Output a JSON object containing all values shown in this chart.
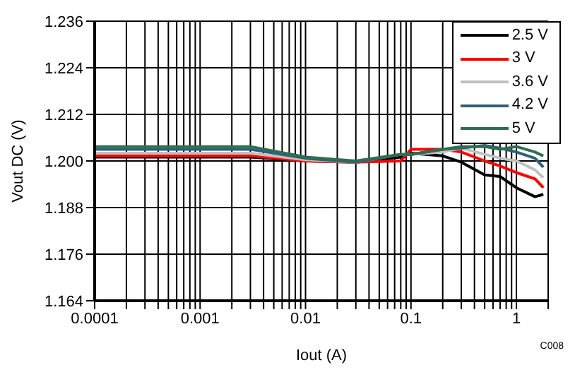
{
  "chart_data": {
    "type": "line",
    "xlabel": "Iout (A)",
    "ylabel": "Vout DC (V)",
    "log": "x",
    "grid": true,
    "legend": "top right",
    "marker": "none",
    "line_style": "solid",
    "x": [
      0.0001,
      0.001,
      0.003,
      0.01,
      0.03,
      0.08,
      0.1,
      0.2,
      0.3,
      0.5,
      0.7,
      1,
      1.5,
      1.8
    ],
    "series": [
      {
        "name": "2.5 V",
        "color": "#000000",
        "values": [
          1.201,
          1.201,
          1.201,
          1.2,
          1.1997,
          1.201,
          1.202,
          1.2013,
          1.1997,
          1.1964,
          1.196,
          1.1931,
          1.1908,
          1.1914
        ]
      },
      {
        "name": "3 V",
        "color": "#ff0000",
        "values": [
          1.2013,
          1.2013,
          1.2013,
          1.2,
          1.1997,
          1.2,
          1.203,
          1.203,
          1.2023,
          1.2,
          1.1987,
          1.197,
          1.1954,
          1.1931
        ]
      },
      {
        "name": "3.6 V",
        "color": "#c0c0c0",
        "values": [
          1.202,
          1.202,
          1.202,
          1.2003,
          1.1997,
          1.2017,
          1.2017,
          1.2023,
          1.2033,
          1.2017,
          1.2007,
          1.2,
          1.1977,
          1.1957
        ]
      },
      {
        "name": "4.2 V",
        "color": "#2f5f7a",
        "values": [
          1.203,
          1.203,
          1.203,
          1.2007,
          1.1997,
          1.2017,
          1.2017,
          1.203,
          1.2033,
          1.204,
          1.2033,
          1.2023,
          1.2007,
          1.1984
        ]
      },
      {
        "name": "5 V",
        "color": "#2e6e4e",
        "values": [
          1.2037,
          1.2037,
          1.2037,
          1.201,
          1.2,
          1.2017,
          1.2017,
          1.203,
          1.2037,
          1.2037,
          1.203,
          1.2037,
          1.2023,
          1.2013
        ]
      }
    ],
    "xlim": [
      0.0001,
      2
    ],
    "xticks": [
      {
        "value": 0.0001,
        "label": "0.0001"
      },
      {
        "value": 0.0002,
        "label": null
      },
      {
        "value": 0.0003,
        "label": null
      },
      {
        "value": 0.0004,
        "label": null
      },
      {
        "value": 0.0005,
        "label": null
      },
      {
        "value": 0.0006,
        "label": null
      },
      {
        "value": 0.0007,
        "label": null
      },
      {
        "value": 0.0008,
        "label": null
      },
      {
        "value": 0.0009,
        "label": null
      },
      {
        "value": 0.001,
        "label": "0.001"
      },
      {
        "value": 0.002,
        "label": null
      },
      {
        "value": 0.003,
        "label": null
      },
      {
        "value": 0.004,
        "label": null
      },
      {
        "value": 0.005,
        "label": null
      },
      {
        "value": 0.006,
        "label": null
      },
      {
        "value": 0.007,
        "label": null
      },
      {
        "value": 0.008,
        "label": null
      },
      {
        "value": 0.009,
        "label": null
      },
      {
        "value": 0.01,
        "label": "0.01"
      },
      {
        "value": 0.02,
        "label": null
      },
      {
        "value": 0.03,
        "label": null
      },
      {
        "value": 0.04,
        "label": null
      },
      {
        "value": 0.05,
        "label": null
      },
      {
        "value": 0.06,
        "label": null
      },
      {
        "value": 0.07,
        "label": null
      },
      {
        "value": 0.08,
        "label": null
      },
      {
        "value": 0.09,
        "label": null
      },
      {
        "value": 0.1,
        "label": "0.1"
      },
      {
        "value": 0.2,
        "label": null
      },
      {
        "value": 0.3,
        "label": null
      },
      {
        "value": 0.4,
        "label": null
      },
      {
        "value": 0.5,
        "label": null
      },
      {
        "value": 0.6,
        "label": null
      },
      {
        "value": 0.7,
        "label": null
      },
      {
        "value": 0.8,
        "label": null
      },
      {
        "value": 0.9,
        "label": null
      },
      {
        "value": 1,
        "label": "1"
      },
      {
        "value": 2,
        "label": null
      }
    ],
    "ylim": [
      1.164,
      1.236
    ],
    "yticks": [
      1.164,
      1.176,
      1.188,
      {
        "value": 1.2,
        "label": "1.200"
      },
      1.212,
      1.224,
      1.236
    ],
    "annotations": [
      "C008"
    ]
  }
}
